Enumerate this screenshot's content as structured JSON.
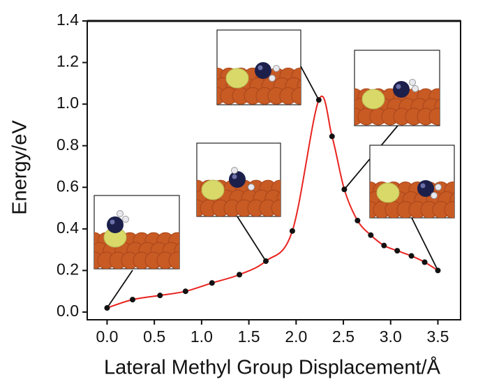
{
  "chart_data": {
    "type": "line",
    "x_label": "Lateral Methyl Group Displacement/Å",
    "y_label": "Energy/eV",
    "x": [
      0.0,
      0.27,
      0.56,
      0.83,
      1.11,
      1.4,
      1.68,
      1.96,
      2.24,
      2.38,
      2.51,
      2.65,
      2.79,
      2.93,
      3.07,
      3.22,
      3.36,
      3.5
    ],
    "series": [
      {
        "color": "#e8231f",
        "marker_color": "#111111",
        "values": [
          0.02,
          0.06,
          0.08,
          0.1,
          0.14,
          0.18,
          0.245,
          0.39,
          1.02,
          0.845,
          0.59,
          0.44,
          0.37,
          0.32,
          0.295,
          0.27,
          0.24,
          0.2
        ]
      }
    ],
    "xlim": [
      -0.21,
      3.74
    ],
    "ylim": [
      -0.037,
      1.4
    ],
    "xticks": [
      {
        "value": 0,
        "label": "0.0"
      },
      0.5,
      {
        "value": 1,
        "label": "1.0"
      },
      1.5,
      {
        "value": 2,
        "label": "2.0"
      },
      2.5,
      {
        "value": 3,
        "label": "3.0"
      },
      3.5
    ],
    "yticks": [
      {
        "value": 0,
        "label": "0.0"
      },
      0.2,
      0.4,
      0.6,
      0.8,
      {
        "value": 1,
        "label": "1.0"
      },
      1.2,
      1.4
    ],
    "grid": false
  }
}
